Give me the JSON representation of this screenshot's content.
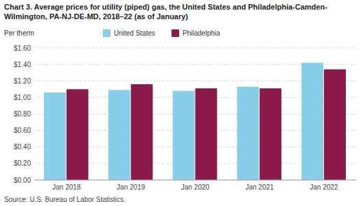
{
  "chart_data": {
    "type": "bar",
    "title": "Chart 3. Average prices for utility (piped) gas, the United States and Philadelphia-Camden-",
    "subtitle": "Wilmington, PA-NJ-DE-MD,  2018–22 (as of January)",
    "ylabel": "Per therm",
    "source": "Source: U.S. Bureau of Labor Statistics.",
    "categories": [
      "Jan 2018",
      "Jan 2019",
      "Jan 2020",
      "Jan 2021",
      "Jan 2022"
    ],
    "series": [
      {
        "name": "United States",
        "color": "#87CEEB",
        "values": [
          1.06,
          1.09,
          1.08,
          1.13,
          1.42
        ]
      },
      {
        "name": "Philadelphia",
        "color": "#8B1A4A",
        "values": [
          1.1,
          1.16,
          1.11,
          1.11,
          1.34
        ]
      }
    ],
    "ylim": [
      0.0,
      1.6
    ],
    "yticks": [
      {
        "value": 0.0,
        "label": "$0.00"
      },
      {
        "value": 0.2,
        "label": "$0.20"
      },
      {
        "value": 0.4,
        "label": "$0.40"
      },
      {
        "value": 0.6,
        "label": "$0.60"
      },
      {
        "value": 0.8,
        "label": "$0.80"
      },
      {
        "value": 1.0,
        "label": "$1.00"
      },
      {
        "value": 1.2,
        "label": "$1.20"
      },
      {
        "value": 1.4,
        "label": "$1.40"
      },
      {
        "value": 1.6,
        "label": "$1.60"
      }
    ],
    "grid": true,
    "legend": "top"
  }
}
